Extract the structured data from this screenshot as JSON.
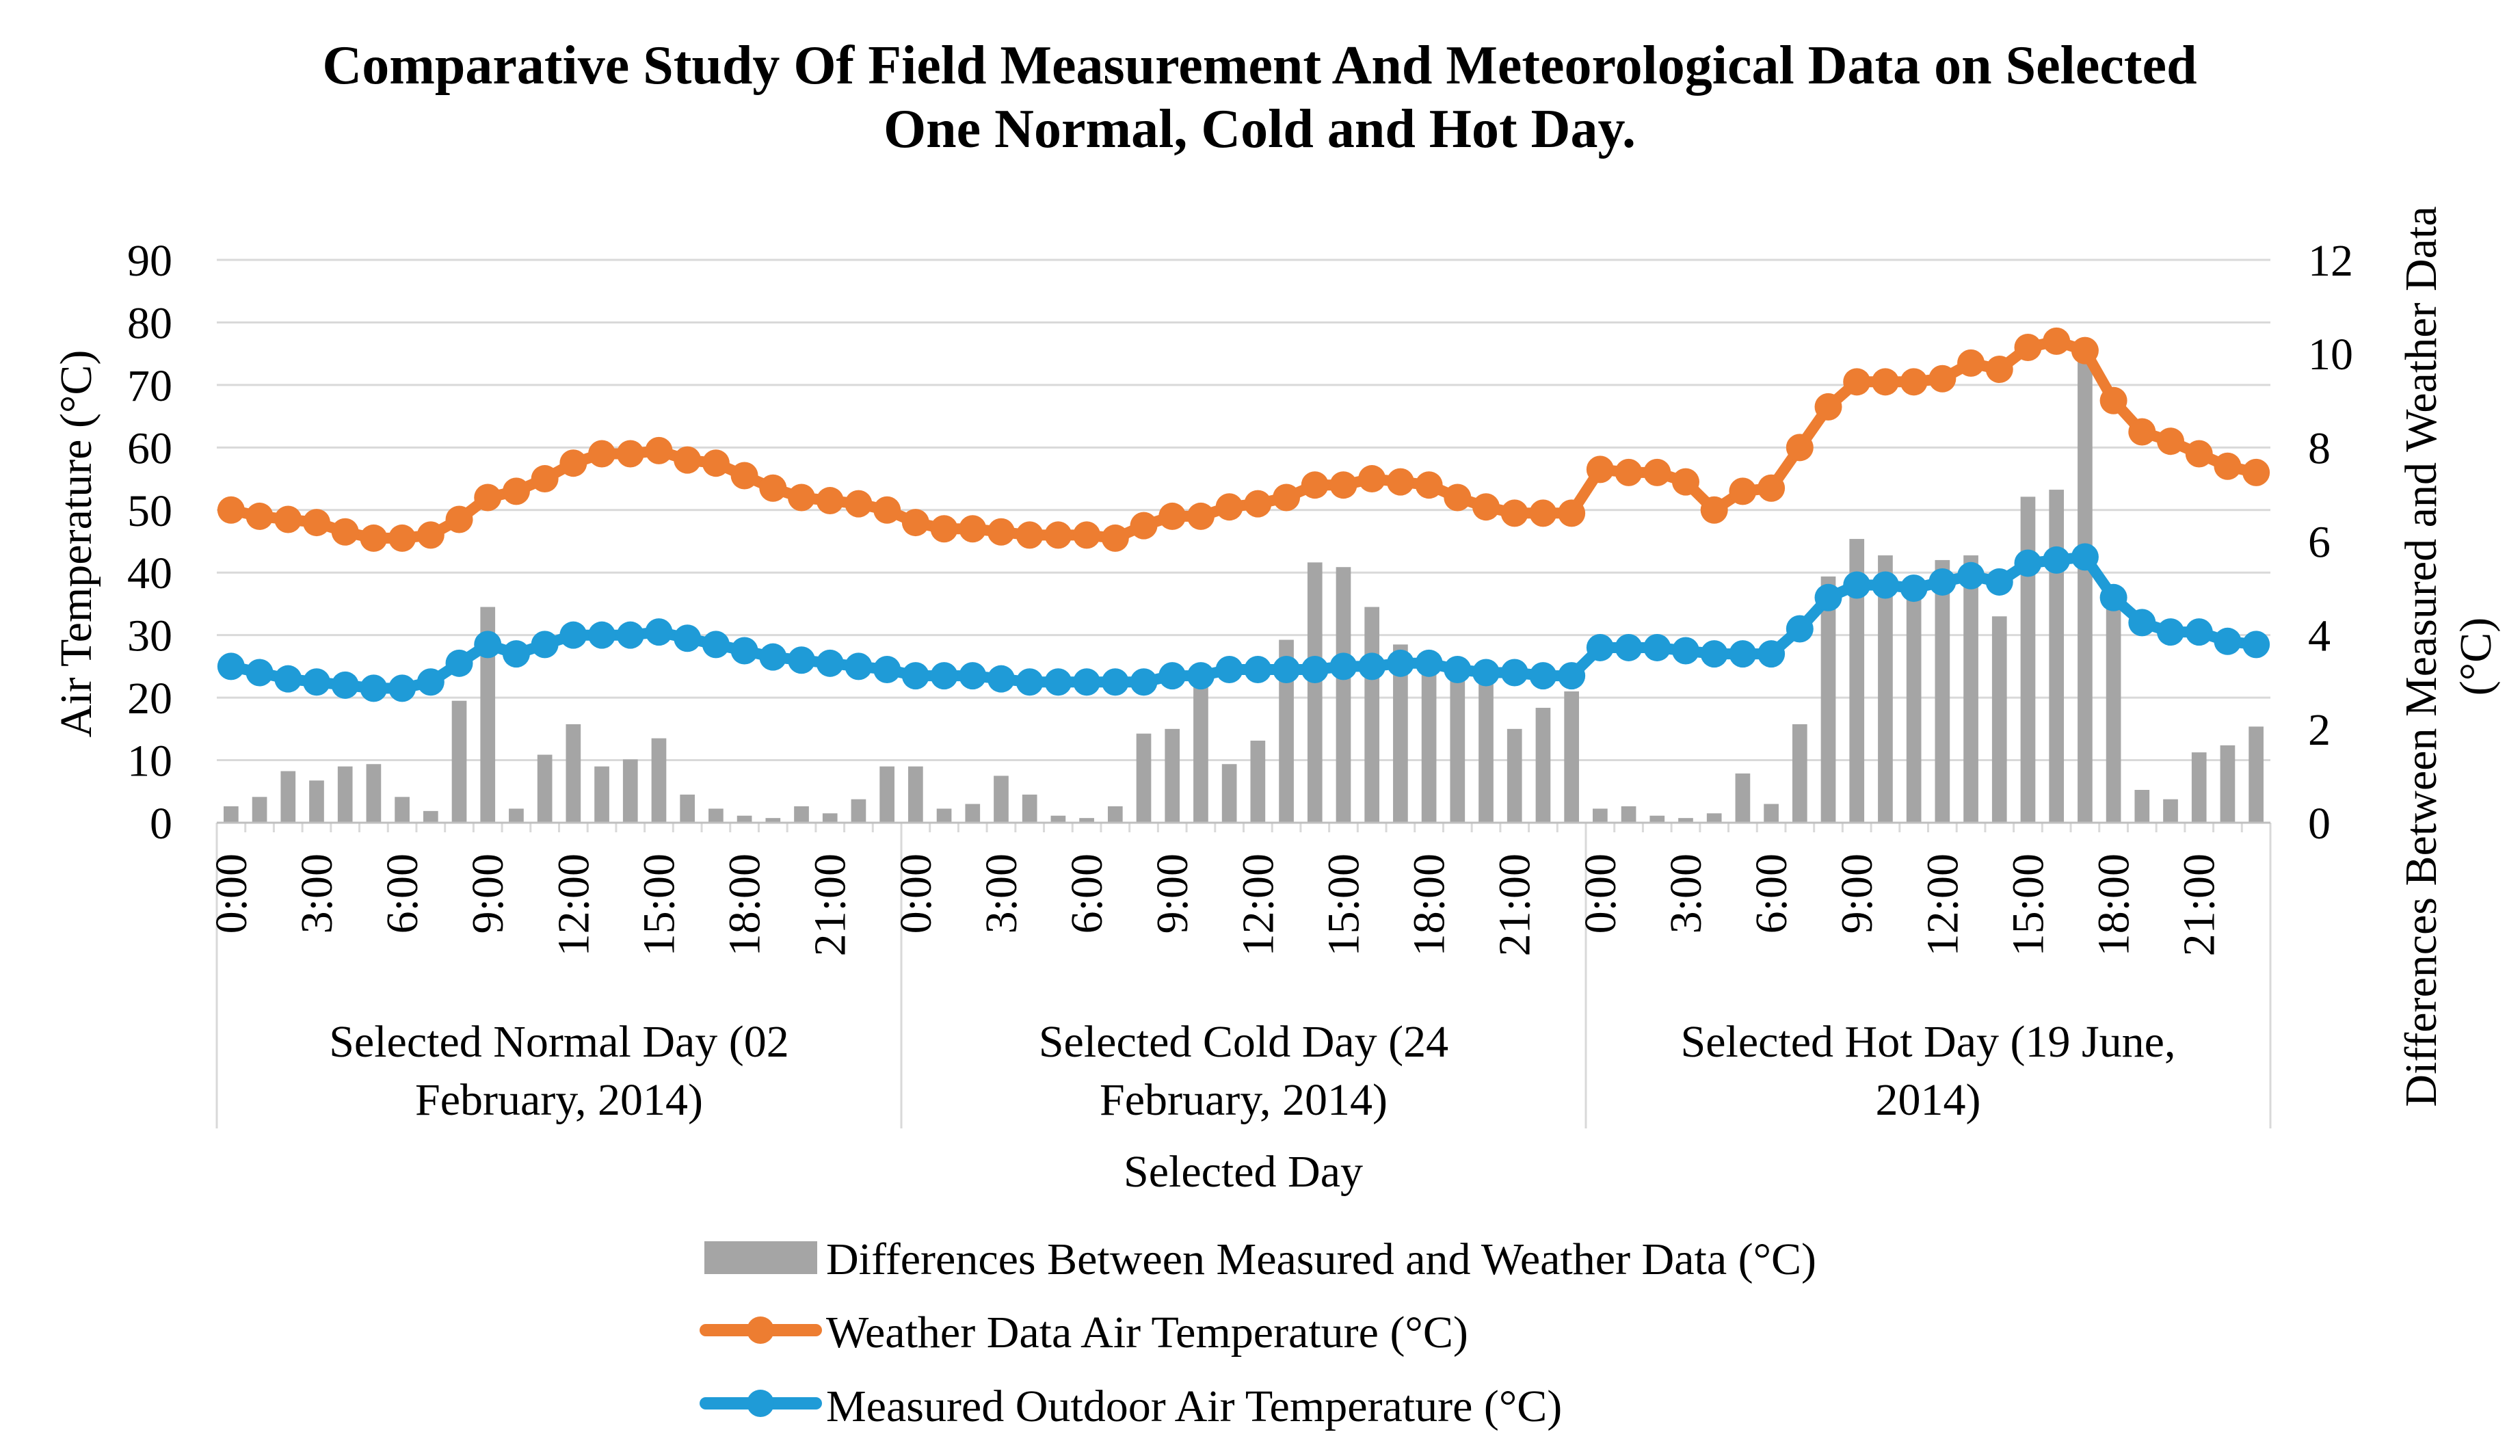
{
  "chart_data": {
    "type": "bar+line",
    "title_lines": [
      "Comparative Study Of Field Measurement And Meteorological Data on Selected",
      "One Normal, Cold and Hot Day."
    ],
    "xlabel": "Selected Day",
    "ylabel_left": "Air Temperature (°C)",
    "ylabel_right_lines": [
      "Differences Between Measured and Weather Data",
      "(°C)"
    ],
    "ylim_left": [
      0,
      90
    ],
    "yticks_left": [
      0,
      10,
      20,
      30,
      40,
      50,
      60,
      70,
      80,
      90
    ],
    "ylim_right": [
      0,
      12
    ],
    "yticks_right": [
      0,
      2,
      4,
      6,
      8,
      10,
      12
    ],
    "gridlines": true,
    "legend_position": "bottom",
    "hour_labels": [
      "0:00",
      "3:00",
      "6:00",
      "9:00",
      "12:00",
      "15:00",
      "18:00",
      "21:00"
    ],
    "groups": [
      {
        "label_lines": [
          "Selected Normal Day (02",
          "February, 2014)"
        ],
        "weather": [
          50,
          49,
          48.5,
          48,
          46.5,
          45.5,
          45.5,
          46,
          48.5,
          52,
          53,
          55,
          57.5,
          59,
          59,
          59.5,
          58,
          57.5,
          55.5,
          53.5,
          52,
          51.5,
          51,
          50
        ],
        "measured": [
          25,
          24,
          23,
          22.5,
          22,
          21.5,
          21.5,
          22.5,
          25.5,
          28.5,
          27,
          28.5,
          30,
          30,
          30,
          30.5,
          29.5,
          28.5,
          27.5,
          26.5,
          26,
          25.5,
          25,
          24.5
        ],
        "difference": [
          0.35,
          0.55,
          1.1,
          0.9,
          1.2,
          1.25,
          0.55,
          0.25,
          2.6,
          4.6,
          0.3,
          1.45,
          2.1,
          1.2,
          1.35,
          1.8,
          0.6,
          0.3,
          0.15,
          0.1,
          0.35,
          0.2,
          0.5,
          1.2
        ]
      },
      {
        "label_lines": [
          "Selected Cold Day (24",
          "February, 2014)"
        ],
        "weather": [
          48,
          47,
          47,
          46.5,
          46,
          46,
          46,
          45.5,
          47.5,
          49,
          49,
          50.5,
          51,
          52,
          54,
          54,
          55,
          54.5,
          54,
          52,
          50.5,
          49.5,
          49.5,
          49.5
        ],
        "measured": [
          23.5,
          23.5,
          23.5,
          23,
          22.5,
          22.5,
          22.5,
          22.5,
          22.5,
          23.5,
          23.5,
          24.5,
          24.5,
          24.5,
          24.5,
          25,
          25,
          25.5,
          25.5,
          24.5,
          24,
          24,
          23.5,
          23.5
        ],
        "difference": [
          1.2,
          0.3,
          0.4,
          1.0,
          0.6,
          0.15,
          0.1,
          0.35,
          1.9,
          2.0,
          2.95,
          1.25,
          1.75,
          3.9,
          5.55,
          5.45,
          4.6,
          3.8,
          3.5,
          3.35,
          3.05,
          2.0,
          2.45,
          2.8
        ]
      },
      {
        "label_lines": [
          "Selected Hot Day (19 June,",
          "2014)"
        ],
        "weather": [
          56.5,
          56,
          56,
          54.5,
          50,
          53,
          53.5,
          60,
          66.5,
          70.5,
          70.5,
          70.5,
          71,
          73.5,
          72.5,
          76,
          77,
          75.5,
          67.5,
          62.5,
          61,
          59,
          57,
          56
        ],
        "measured": [
          28,
          28,
          28,
          27.5,
          27,
          27,
          27,
          31,
          36,
          38,
          38,
          37.5,
          38.5,
          39.5,
          38.5,
          41.5,
          42,
          42.5,
          36,
          32,
          30.5,
          30.5,
          29,
          28.5
        ],
        "difference": [
          0.3,
          0.35,
          0.15,
          0.1,
          0.2,
          1.05,
          0.4,
          2.1,
          5.25,
          6.05,
          5.7,
          5.2,
          5.6,
          5.7,
          4.4,
          6.95,
          7.1,
          10.1,
          4.75,
          0.7,
          0.5,
          1.5,
          1.65,
          2.05
        ]
      }
    ],
    "series_meta": [
      {
        "key": "difference",
        "name": "Differences Between Measured and Weather Data (°C)",
        "type": "bar",
        "axis": "right",
        "color": "#a5a5a5"
      },
      {
        "key": "weather",
        "name": "Weather Data Air Temperature (°C)",
        "type": "line",
        "axis": "left",
        "color": "#ed7d31"
      },
      {
        "key": "measured",
        "name": "Measured Outdoor Air Temperature (°C)",
        "type": "line",
        "axis": "left",
        "color": "#1f9bd7"
      }
    ]
  }
}
